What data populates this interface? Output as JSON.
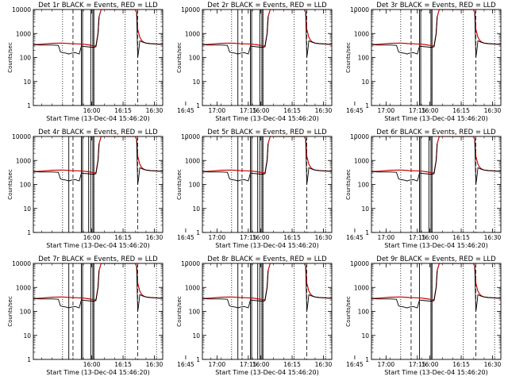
{
  "chart_data": {
    "type": "line",
    "y_scale": "log",
    "ylim": [
      1,
      10000
    ],
    "ylabel": "Counts/sec",
    "xlabel": "Start Time (13-Dec-04 15:46:20)",
    "x_ticks": [
      "16:00",
      "16:15",
      "16:30",
      "16:45",
      "17:00",
      "17:15"
    ],
    "y_ticks": [
      "1",
      "10",
      "100",
      "1000",
      "10000"
    ],
    "colors": {
      "events": "#000000",
      "lld": "#cc0000"
    },
    "panels": [
      {
        "title": "Det 1r BLACK = Events, RED = LLD"
      },
      {
        "title": "Det 2r BLACK = Events, RED = LLD"
      },
      {
        "title": "Det 3r BLACK = Events, RED = LLD"
      },
      {
        "title": "Det 4r BLACK = Events, RED = LLD"
      },
      {
        "title": "Det 5r BLACK = Events, RED = LLD"
      },
      {
        "title": "Det 6r BLACK = Events, RED = LLD"
      },
      {
        "title": "Det 7r BLACK = Events, RED = LLD"
      },
      {
        "title": "Det 8r BLACK = Events, RED = LLD"
      },
      {
        "title": "Det 9r BLACK = Events, RED = LLD"
      }
    ],
    "xlim_minutes": [
      -14,
      48
    ],
    "dotted_lines": [
      0,
      15,
      30,
      45
    ],
    "dashed_lines": [
      5,
      36
    ],
    "series": [
      {
        "name": "LLD",
        "x": [
          -14,
          -10,
          -5,
          0,
          4,
          7,
          10,
          12,
          14,
          15,
          16,
          17,
          17.5,
          18.5,
          19.5,
          20,
          21,
          22,
          23,
          24,
          25,
          26,
          27,
          28,
          29,
          30,
          31,
          32,
          33,
          34,
          35,
          35.5,
          36,
          37,
          38,
          39,
          40,
          42,
          44,
          46,
          48
        ],
        "values": [
          340,
          360,
          390,
          400,
          380,
          370,
          360,
          340,
          320,
          300,
          310,
          1000,
          5000,
          10000,
          10000,
          10000,
          10000,
          10000,
          10000,
          10000,
          10000,
          10000,
          10000,
          10000,
          10000,
          10000,
          10000,
          10000,
          10000,
          10000,
          10000,
          8000,
          1500,
          700,
          500,
          430,
          400,
          380,
          370,
          360,
          350
        ]
      },
      {
        "name": "Events",
        "x": [
          -14,
          -10,
          -5,
          -2,
          -1,
          0,
          2,
          3,
          4,
          6,
          8,
          9,
          10,
          12,
          14,
          15,
          16,
          17,
          17.5
        ],
        "values": [
          340,
          330,
          330,
          320,
          170,
          160,
          150,
          140,
          150,
          160,
          140,
          300,
          290,
          280,
          270,
          270,
          280,
          1000,
          5000
        ]
      },
      {
        "name": "Events",
        "x": [
          35.5,
          36,
          36.5,
          37,
          38,
          39,
          40,
          42,
          44,
          46,
          48
        ],
        "values": [
          8000,
          100,
          200,
          500,
          450,
          420,
          400,
          380,
          370,
          360,
          350
        ]
      }
    ]
  }
}
